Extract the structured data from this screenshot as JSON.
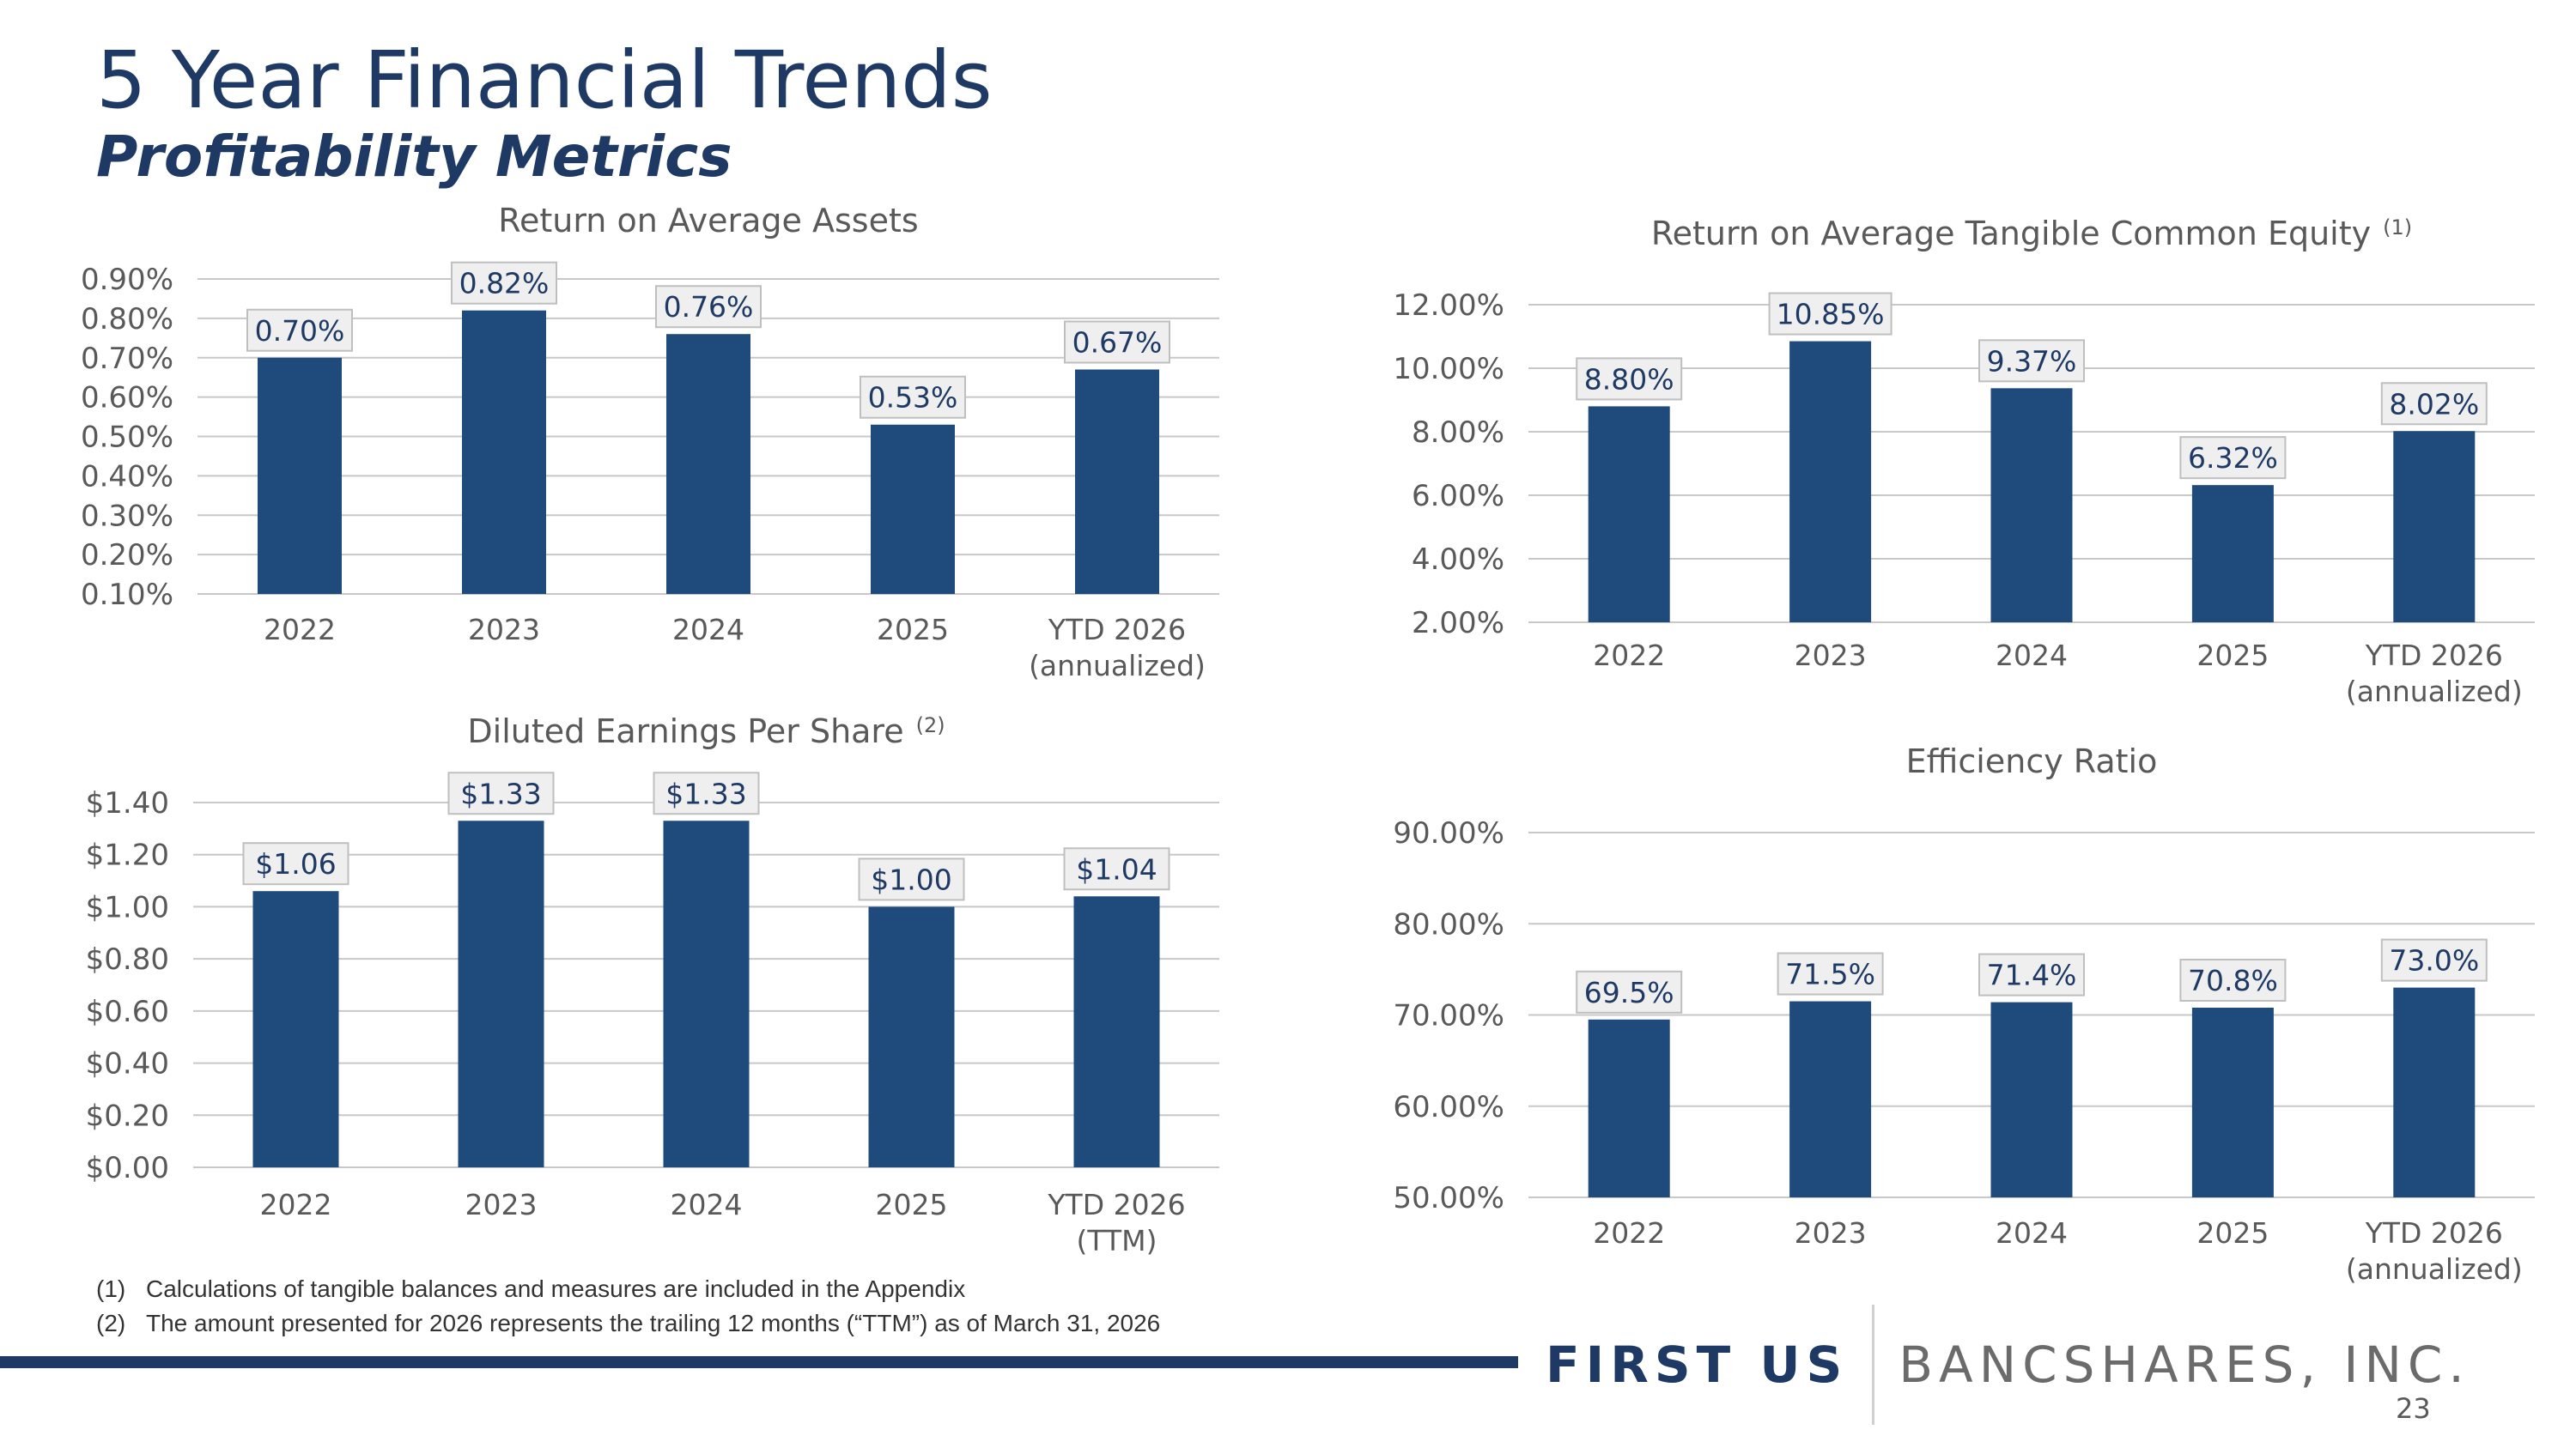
{
  "header": {
    "title": "5 Year Financial Trends",
    "subtitle": "Profitability Metrics"
  },
  "chart_data": [
    {
      "id": "roaa",
      "type": "bar",
      "title": "Return on Average Assets",
      "title_sup": "",
      "categories": [
        "2022",
        "2023",
        "2024",
        "2025",
        [
          "YTD 2026",
          "(annualized)"
        ]
      ],
      "values": [
        0.7,
        0.82,
        0.76,
        0.53,
        0.67
      ],
      "value_labels": [
        "0.70%",
        "0.82%",
        "0.76%",
        "0.53%",
        "0.67%"
      ],
      "ylim": [
        0.1,
        0.9
      ],
      "yticks": [
        0.1,
        0.2,
        0.3,
        0.4,
        0.5,
        0.6,
        0.7,
        0.8,
        0.9
      ],
      "ytick_labels": [
        "0.10%",
        "0.20%",
        "0.30%",
        "0.40%",
        "0.50%",
        "0.60%",
        "0.70%",
        "0.80%",
        "0.90%"
      ],
      "xlabel": "",
      "ylabel": "",
      "grid": true,
      "legend": "none",
      "color": "#1e4a7c"
    },
    {
      "id": "roatce",
      "type": "bar",
      "title": "Return on Average Tangible Common Equity",
      "title_sup": "(1)",
      "categories": [
        "2022",
        "2023",
        "2024",
        "2025",
        [
          "YTD 2026",
          "(annualized)"
        ]
      ],
      "values": [
        8.8,
        10.85,
        9.37,
        6.32,
        8.02
      ],
      "value_labels": [
        "8.80%",
        "10.85%",
        "9.37%",
        "6.32%",
        "8.02%"
      ],
      "ylim": [
        2.0,
        12.0
      ],
      "yticks": [
        2,
        4,
        6,
        8,
        10,
        12
      ],
      "ytick_labels": [
        "2.00%",
        "4.00%",
        "6.00%",
        "8.00%",
        "10.00%",
        "12.00%"
      ],
      "xlabel": "",
      "ylabel": "",
      "grid": true,
      "legend": "none",
      "color": "#1e4a7c"
    },
    {
      "id": "eps",
      "type": "bar",
      "title": "Diluted Earnings Per Share",
      "title_sup": "(2)",
      "categories": [
        "2022",
        "2023",
        "2024",
        "2025",
        [
          "YTD 2026",
          "(TTM)"
        ]
      ],
      "values": [
        1.06,
        1.33,
        1.33,
        1.0,
        1.04
      ],
      "value_labels": [
        "$1.06",
        "$1.33",
        "$1.33",
        "$1.00",
        "$1.04"
      ],
      "ylim": [
        0,
        1.4
      ],
      "yticks": [
        0,
        0.2,
        0.4,
        0.6,
        0.8,
        1.0,
        1.2,
        1.4
      ],
      "ytick_labels": [
        "$0.00",
        "$0.20",
        "$0.40",
        "$0.60",
        "$0.80",
        "$1.00",
        "$1.20",
        "$1.40"
      ],
      "xlabel": "",
      "ylabel": "",
      "grid": true,
      "legend": "none",
      "color": "#1e4a7c"
    },
    {
      "id": "efficiency",
      "type": "bar",
      "title": "Efficiency Ratio",
      "title_sup": "",
      "categories": [
        "2022",
        "2023",
        "2024",
        "2025",
        [
          "YTD 2026",
          "(annualized)"
        ]
      ],
      "values": [
        69.5,
        71.5,
        71.4,
        70.8,
        73.0
      ],
      "value_labels": [
        "69.5%",
        "71.5%",
        "71.4%",
        "70.8%",
        "73.0%"
      ],
      "ylim": [
        50,
        90
      ],
      "yticks": [
        50,
        60,
        70,
        80,
        90
      ],
      "ytick_labels": [
        "50.00%",
        "60.00%",
        "70.00%",
        "80.00%",
        "90.00%"
      ],
      "xlabel": "",
      "ylabel": "",
      "grid": true,
      "legend": "none",
      "color": "#1e4a7c"
    }
  ],
  "footnotes": [
    {
      "num": "(1)",
      "text": "Calculations of tangible balances and measures are included in the Appendix"
    },
    {
      "num": "(2)",
      "text": "The amount presented for 2026 represents the trailing 12 months (“TTM”) as of March 31, 2026"
    }
  ],
  "brand": {
    "first": "FIRST US",
    "rest": "BANCSHARES, INC.",
    "primary_color": "#1e3a64",
    "secondary_color": "#6b6b6b"
  },
  "page_number": "23"
}
